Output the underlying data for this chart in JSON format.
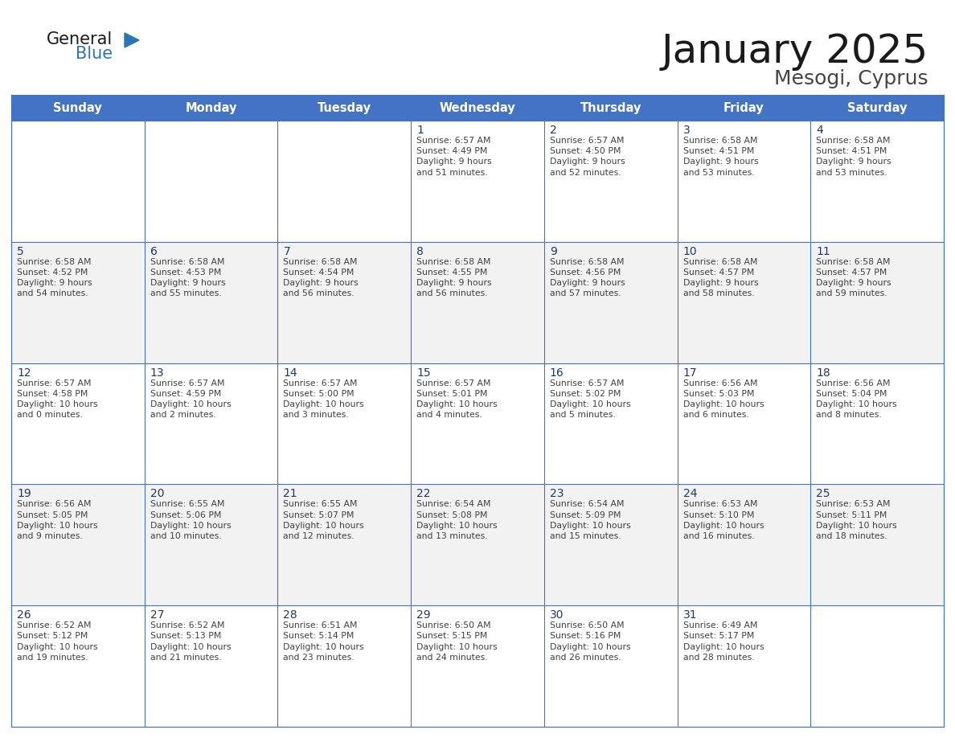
{
  "title": "January 2025",
  "subtitle": "Mesogi, Cyprus",
  "days_of_week": [
    "Sunday",
    "Monday",
    "Tuesday",
    "Wednesday",
    "Thursday",
    "Friday",
    "Saturday"
  ],
  "header_bg": "#4472C4",
  "header_text": "#FFFFFF",
  "cell_bg_white": "#FFFFFF",
  "cell_bg_gray": "#F2F2F2",
  "day_num_color": "#1F3864",
  "cell_text_color": "#404040",
  "grid_color": "#4472C4",
  "title_color": "#1a1a1a",
  "subtitle_color": "#444444",
  "logo_general_color": "#1a1a1a",
  "logo_blue_color": "#2E75B6",
  "calendar_data": [
    [
      null,
      null,
      null,
      {
        "day": 1,
        "sunrise": "6:57 AM",
        "sunset": "4:49 PM",
        "daylight_h": "9 hours",
        "daylight_m": "and 51 minutes."
      },
      {
        "day": 2,
        "sunrise": "6:57 AM",
        "sunset": "4:50 PM",
        "daylight_h": "9 hours",
        "daylight_m": "and 52 minutes."
      },
      {
        "day": 3,
        "sunrise": "6:58 AM",
        "sunset": "4:51 PM",
        "daylight_h": "9 hours",
        "daylight_m": "and 53 minutes."
      },
      {
        "day": 4,
        "sunrise": "6:58 AM",
        "sunset": "4:51 PM",
        "daylight_h": "9 hours",
        "daylight_m": "and 53 minutes."
      }
    ],
    [
      {
        "day": 5,
        "sunrise": "6:58 AM",
        "sunset": "4:52 PM",
        "daylight_h": "9 hours",
        "daylight_m": "and 54 minutes."
      },
      {
        "day": 6,
        "sunrise": "6:58 AM",
        "sunset": "4:53 PM",
        "daylight_h": "9 hours",
        "daylight_m": "and 55 minutes."
      },
      {
        "day": 7,
        "sunrise": "6:58 AM",
        "sunset": "4:54 PM",
        "daylight_h": "9 hours",
        "daylight_m": "and 56 minutes."
      },
      {
        "day": 8,
        "sunrise": "6:58 AM",
        "sunset": "4:55 PM",
        "daylight_h": "9 hours",
        "daylight_m": "and 56 minutes."
      },
      {
        "day": 9,
        "sunrise": "6:58 AM",
        "sunset": "4:56 PM",
        "daylight_h": "9 hours",
        "daylight_m": "and 57 minutes."
      },
      {
        "day": 10,
        "sunrise": "6:58 AM",
        "sunset": "4:57 PM",
        "daylight_h": "9 hours",
        "daylight_m": "and 58 minutes."
      },
      {
        "day": 11,
        "sunrise": "6:58 AM",
        "sunset": "4:57 PM",
        "daylight_h": "9 hours",
        "daylight_m": "and 59 minutes."
      }
    ],
    [
      {
        "day": 12,
        "sunrise": "6:57 AM",
        "sunset": "4:58 PM",
        "daylight_h": "10 hours",
        "daylight_m": "and 0 minutes."
      },
      {
        "day": 13,
        "sunrise": "6:57 AM",
        "sunset": "4:59 PM",
        "daylight_h": "10 hours",
        "daylight_m": "and 2 minutes."
      },
      {
        "day": 14,
        "sunrise": "6:57 AM",
        "sunset": "5:00 PM",
        "daylight_h": "10 hours",
        "daylight_m": "and 3 minutes."
      },
      {
        "day": 15,
        "sunrise": "6:57 AM",
        "sunset": "5:01 PM",
        "daylight_h": "10 hours",
        "daylight_m": "and 4 minutes."
      },
      {
        "day": 16,
        "sunrise": "6:57 AM",
        "sunset": "5:02 PM",
        "daylight_h": "10 hours",
        "daylight_m": "and 5 minutes."
      },
      {
        "day": 17,
        "sunrise": "6:56 AM",
        "sunset": "5:03 PM",
        "daylight_h": "10 hours",
        "daylight_m": "and 6 minutes."
      },
      {
        "day": 18,
        "sunrise": "6:56 AM",
        "sunset": "5:04 PM",
        "daylight_h": "10 hours",
        "daylight_m": "and 8 minutes."
      }
    ],
    [
      {
        "day": 19,
        "sunrise": "6:56 AM",
        "sunset": "5:05 PM",
        "daylight_h": "10 hours",
        "daylight_m": "and 9 minutes."
      },
      {
        "day": 20,
        "sunrise": "6:55 AM",
        "sunset": "5:06 PM",
        "daylight_h": "10 hours",
        "daylight_m": "and 10 minutes."
      },
      {
        "day": 21,
        "sunrise": "6:55 AM",
        "sunset": "5:07 PM",
        "daylight_h": "10 hours",
        "daylight_m": "and 12 minutes."
      },
      {
        "day": 22,
        "sunrise": "6:54 AM",
        "sunset": "5:08 PM",
        "daylight_h": "10 hours",
        "daylight_m": "and 13 minutes."
      },
      {
        "day": 23,
        "sunrise": "6:54 AM",
        "sunset": "5:09 PM",
        "daylight_h": "10 hours",
        "daylight_m": "and 15 minutes."
      },
      {
        "day": 24,
        "sunrise": "6:53 AM",
        "sunset": "5:10 PM",
        "daylight_h": "10 hours",
        "daylight_m": "and 16 minutes."
      },
      {
        "day": 25,
        "sunrise": "6:53 AM",
        "sunset": "5:11 PM",
        "daylight_h": "10 hours",
        "daylight_m": "and 18 minutes."
      }
    ],
    [
      {
        "day": 26,
        "sunrise": "6:52 AM",
        "sunset": "5:12 PM",
        "daylight_h": "10 hours",
        "daylight_m": "and 19 minutes."
      },
      {
        "day": 27,
        "sunrise": "6:52 AM",
        "sunset": "5:13 PM",
        "daylight_h": "10 hours",
        "daylight_m": "and 21 minutes."
      },
      {
        "day": 28,
        "sunrise": "6:51 AM",
        "sunset": "5:14 PM",
        "daylight_h": "10 hours",
        "daylight_m": "and 23 minutes."
      },
      {
        "day": 29,
        "sunrise": "6:50 AM",
        "sunset": "5:15 PM",
        "daylight_h": "10 hours",
        "daylight_m": "and 24 minutes."
      },
      {
        "day": 30,
        "sunrise": "6:50 AM",
        "sunset": "5:16 PM",
        "daylight_h": "10 hours",
        "daylight_m": "and 26 minutes."
      },
      {
        "day": 31,
        "sunrise": "6:49 AM",
        "sunset": "5:17 PM",
        "daylight_h": "10 hours",
        "daylight_m": "and 28 minutes."
      },
      null
    ]
  ]
}
